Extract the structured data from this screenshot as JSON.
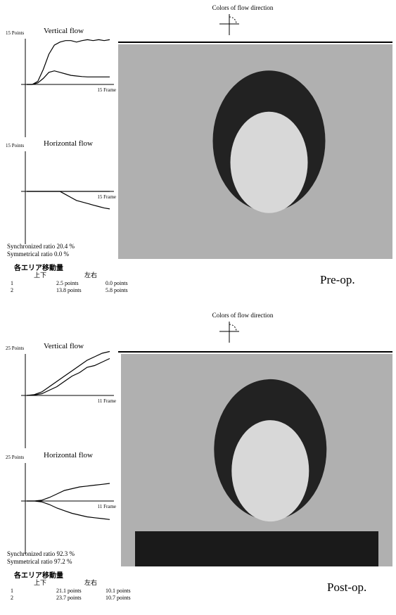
{
  "panels": [
    {
      "flow_colors_title": "Colors of flow direction",
      "graphs": [
        {
          "scale_label": "15 Points",
          "title": "Vertical flow",
          "frame_label": "15 Frame",
          "curves": [
            [
              0,
              0,
              1,
              5,
              10,
              13,
              14,
              14.5,
              14.5,
              14,
              14.5,
              14.8,
              14.5,
              14.8,
              14.5,
              14.8
            ],
            [
              0,
              0,
              0.5,
              2,
              4,
              4.5,
              4,
              3.5,
              3,
              2.8,
              2.6,
              2.5,
              2.5,
              2.5,
              2.5,
              2.5
            ]
          ]
        },
        {
          "scale_label": "15 Points",
          "title": "Horizontal flow",
          "frame_label": "15 Frame",
          "curves": [
            [
              0,
              0,
              0,
              0,
              0,
              0,
              0,
              -1,
              -2,
              -3,
              -3.5,
              -4,
              -4.5,
              -5,
              -5.5,
              -5.8
            ],
            [
              0,
              0,
              0,
              0,
              0,
              0,
              0,
              0,
              0,
              0,
              0,
              0,
              0,
              0,
              0,
              0
            ]
          ]
        }
      ],
      "synchronized": "Synchronized ratio 20.4 %",
      "symmetrical": "Symmetrical ratio 0.0 %",
      "table": {
        "title": "各エリア移動量",
        "columns": [
          "上下",
          "左右"
        ],
        "rows": [
          [
            "1",
            "2.5 points",
            "0.0 points"
          ],
          [
            "2",
            "13.8 points",
            "5.8 points"
          ]
        ]
      },
      "caption": "Pre-op."
    },
    {
      "flow_colors_title": "Colors of flow direction",
      "graphs": [
        {
          "scale_label": "25 Points",
          "title": "Vertical flow",
          "frame_label": "11 Frame",
          "curves": [
            [
              0,
              0.5,
              2,
              5,
              8,
              11,
              14,
              17,
              20,
              22,
              24,
              25
            ],
            [
              0,
              0.3,
              1,
              3,
              5,
              8,
              11,
              13,
              16,
              17,
              19,
              21
            ]
          ]
        },
        {
          "scale_label": "25 Points",
          "title": "Horizontal flow",
          "frame_label": "11 Frame",
          "curves": [
            [
              0,
              0,
              0.5,
              2,
              4,
              6,
              7,
              8,
              8.5,
              9,
              9.5,
              10
            ],
            [
              0,
              0,
              -0.5,
              -2,
              -4,
              -5.5,
              -7,
              -8,
              -9,
              -9.5,
              -10,
              -10.5
            ]
          ]
        }
      ],
      "synchronized": "Synchronized ratio 92.3 %",
      "symmetrical": "Symmetrical ratio 97.2 %",
      "table": {
        "title": "各エリア移動量",
        "columns": [
          "上下",
          "左右"
        ],
        "rows": [
          [
            "1",
            "21.1 points",
            "10.1 points"
          ],
          [
            "2",
            "23.7 points",
            "10.7 points"
          ]
        ]
      },
      "caption": "Post-op."
    }
  ]
}
